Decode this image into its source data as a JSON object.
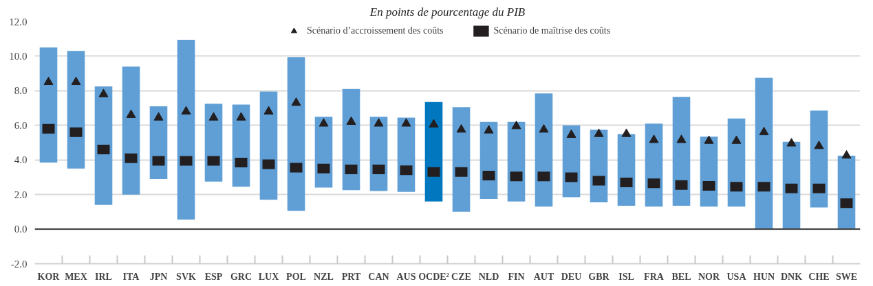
{
  "chart_data": {
    "type": "bar",
    "title": "En points de pourcentage du PIB",
    "categories": [
      "KOR",
      "MEX",
      "IRL",
      "ITA",
      "JPN",
      "SVK",
      "ESP",
      "GRC",
      "LUX",
      "POL",
      "NZL",
      "PRT",
      "CAN",
      "AUS",
      "OCDE²",
      "CZE",
      "NLD",
      "FIN",
      "AUT",
      "DEU",
      "GBR",
      "ISL",
      "FRA",
      "BEL",
      "NOR",
      "USA",
      "HUN",
      "DNK",
      "CHE",
      "SWE"
    ],
    "series": [
      {
        "colors": [
          "#5f9fd6",
          "#5f9fd6",
          "#5f9fd6",
          "#5f9fd6",
          "#5f9fd6",
          "#5f9fd6",
          "#5f9fd6",
          "#5f9fd6",
          "#5f9fd6",
          "#5f9fd6",
          "#5f9fd6",
          "#5f9fd6",
          "#5f9fd6",
          "#5f9fd6",
          "#0077be",
          "#5f9fd6",
          "#5f9fd6",
          "#5f9fd6",
          "#5f9fd6",
          "#5f9fd6",
          "#5f9fd6",
          "#5f9fd6",
          "#5f9fd6",
          "#5f9fd6",
          "#5f9fd6",
          "#5f9fd6",
          "#5f9fd6",
          "#5f9fd6",
          "#5f9fd6",
          "#5f9fd6"
        ],
        "base": [
          3.85,
          3.5,
          1.4,
          2.0,
          2.9,
          0.55,
          2.75,
          2.45,
          1.7,
          1.05,
          2.4,
          2.25,
          2.2,
          2.15,
          1.6,
          1.0,
          1.75,
          1.6,
          1.3,
          1.85,
          1.55,
          1.35,
          1.3,
          1.35,
          1.3,
          1.3,
          0,
          0,
          1.25,
          0
        ],
        "values": [
          6.65,
          6.8,
          6.85,
          7.4,
          4.2,
          10.4,
          4.5,
          4.75,
          6.25,
          8.9,
          4.1,
          5.85,
          4.3,
          4.3,
          5.75,
          6.05,
          4.45,
          4.6,
          6.55,
          4.15,
          4.2,
          4.15,
          4.8,
          6.3,
          4.05,
          5.1,
          8.75,
          5.05,
          5.6,
          4.25
        ]
      },
      {
        "type": "scatter",
        "name": "Scénario d’accroissement des coûts",
        "marker": "triangle",
        "color": "#231f20",
        "values": [
          8.5,
          8.5,
          7.8,
          6.6,
          6.45,
          6.8,
          6.45,
          6.45,
          6.8,
          7.3,
          6.1,
          6.2,
          6.1,
          6.1,
          6.05,
          5.75,
          5.7,
          5.95,
          5.75,
          5.45,
          5.5,
          5.5,
          5.15,
          5.15,
          5.1,
          5.1,
          5.6,
          4.95,
          4.8,
          4.25
        ]
      },
      {
        "type": "scatter",
        "name": "Scénario de maîtrise des coûts",
        "marker": "square",
        "color": "#231f20",
        "values": [
          5.8,
          5.6,
          4.6,
          4.1,
          3.95,
          3.95,
          3.95,
          3.85,
          3.75,
          3.55,
          3.5,
          3.45,
          3.45,
          3.4,
          3.3,
          3.3,
          3.1,
          3.05,
          3.05,
          3.0,
          2.8,
          2.7,
          2.65,
          2.55,
          2.5,
          2.45,
          2.45,
          2.35,
          2.35,
          1.5
        ]
      }
    ],
    "ylim": [
      -2,
      12
    ],
    "yticks": [
      {
        "value": -2,
        "label": "-2.0"
      },
      {
        "value": 0,
        "label": "0.0"
      },
      {
        "value": 2,
        "label": "2.0"
      },
      {
        "value": 4,
        "label": "4.0"
      },
      {
        "value": 6,
        "label": "6.0"
      },
      {
        "value": 8,
        "label": "8.0"
      },
      {
        "value": 10,
        "label": "10.0"
      },
      {
        "value": 12,
        "label": "12.0"
      }
    ],
    "ref_lines": [
      {
        "axis": "y",
        "value": 0,
        "color": "#404040"
      }
    ],
    "grid": "y",
    "legend": "top"
  }
}
